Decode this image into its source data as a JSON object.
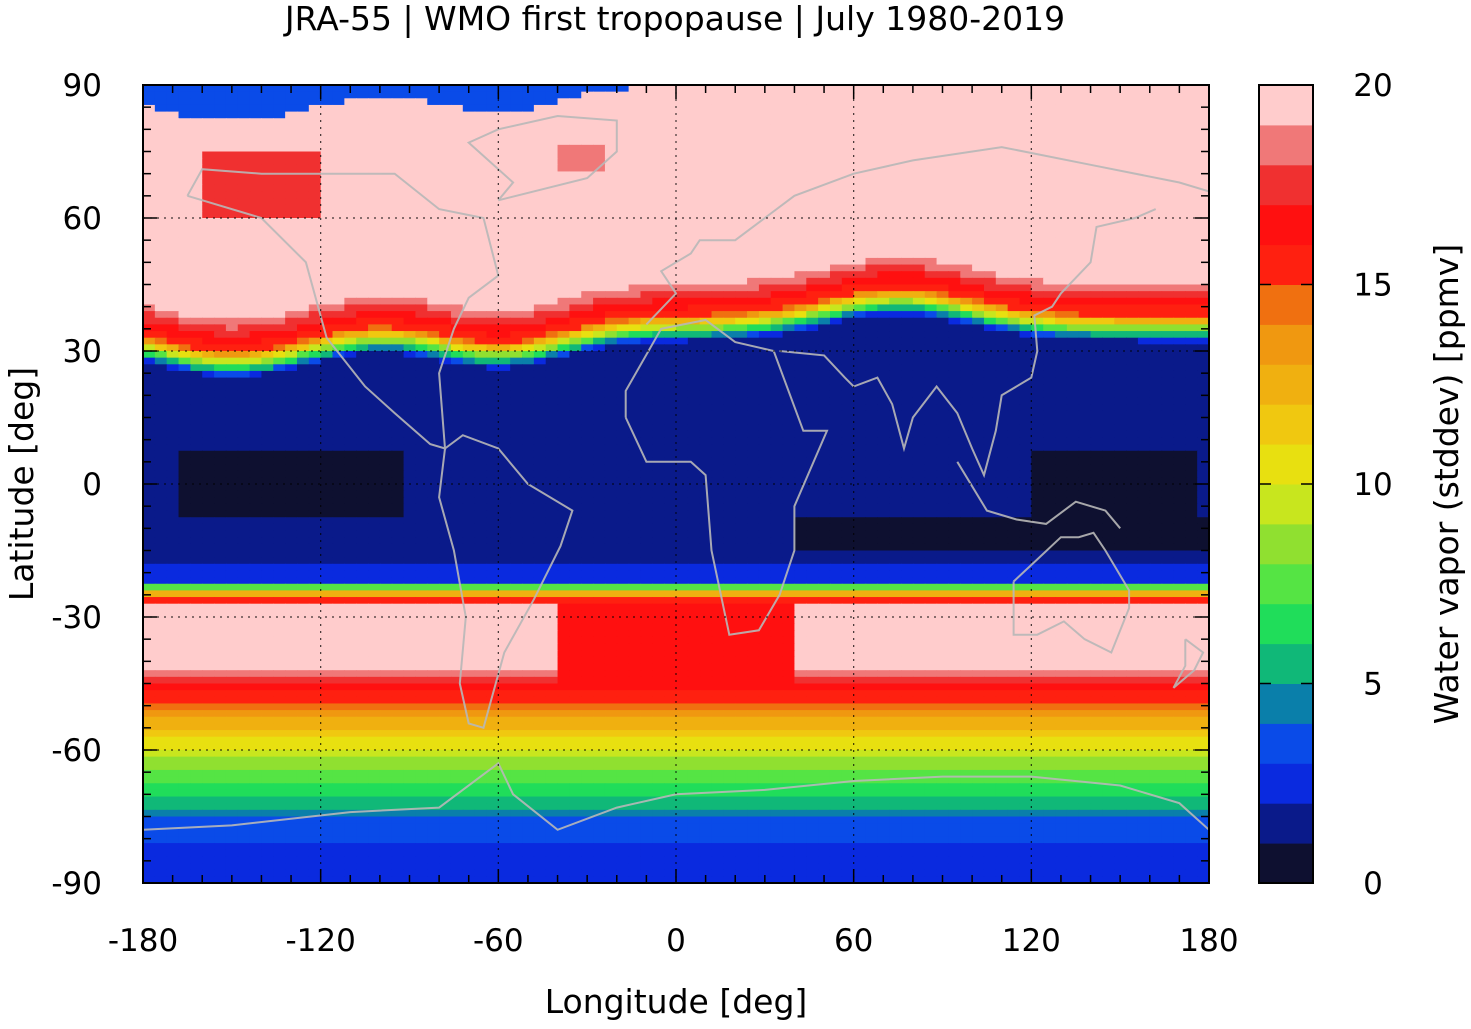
{
  "chart_data": {
    "type": "heatmap",
    "title": "JRA-55 | WMO first tropopause | July 1980-2019",
    "xlabel": "Longitude [deg]",
    "ylabel": "Latitude [deg]",
    "colorbar_label": "Water vapor (stddev) [ppmv]",
    "xlim": [
      -180,
      180
    ],
    "ylim": [
      -90,
      90
    ],
    "x_ticks": [
      "-180",
      "-120",
      "-60",
      "0",
      "60",
      "120",
      "180"
    ],
    "y_ticks": [
      "90",
      "60",
      "30",
      "0",
      "-30",
      "-60",
      "-90"
    ],
    "grid": true,
    "colorbar": {
      "range": [
        0,
        20
      ],
      "ticks": [
        "0",
        "5",
        "10",
        "15",
        "20"
      ],
      "levels": [
        0,
        1,
        2,
        3,
        4,
        5,
        6,
        7,
        8,
        9,
        10,
        11,
        12,
        13,
        14,
        15,
        16,
        17,
        18,
        19,
        20
      ],
      "colors": [
        "#0e1030",
        "#0a1a8a",
        "#0a2adf",
        "#0a4be8",
        "#0a7faa",
        "#10b878",
        "#20dd5a",
        "#55e444",
        "#90e030",
        "#c8e61e",
        "#e8e010",
        "#f0c810",
        "#f0b010",
        "#f09810",
        "#f07010",
        "#ff2010",
        "#ff1010",
        "#f03030",
        "#f07878",
        "#ffcccc"
      ]
    },
    "field": {
      "description_lat_profile_ppmv": [
        {
          "lat": 90,
          "value": 20
        },
        {
          "lat": 60,
          "value": 20
        },
        {
          "lat": 45,
          "value": 19
        },
        {
          "lat": 38,
          "value": 15
        },
        {
          "lat": 32,
          "value": 1.5
        },
        {
          "lat": 15,
          "value": 1.5
        },
        {
          "lat": 0,
          "value": 1.5
        },
        {
          "lat": -15,
          "value": 1.5
        },
        {
          "lat": -22,
          "value": 3
        },
        {
          "lat": -25,
          "value": 13
        },
        {
          "lat": -28,
          "value": 20
        },
        {
          "lat": -40,
          "value": 20
        },
        {
          "lat": -47,
          "value": 16
        },
        {
          "lat": -55,
          "value": 12
        },
        {
          "lat": -62,
          "value": 9
        },
        {
          "lat": -70,
          "value": 6
        },
        {
          "lat": -77,
          "value": 3.5
        },
        {
          "lat": -85,
          "value": 2.5
        },
        {
          "lat": -90,
          "value": 3
        }
      ]
    }
  }
}
